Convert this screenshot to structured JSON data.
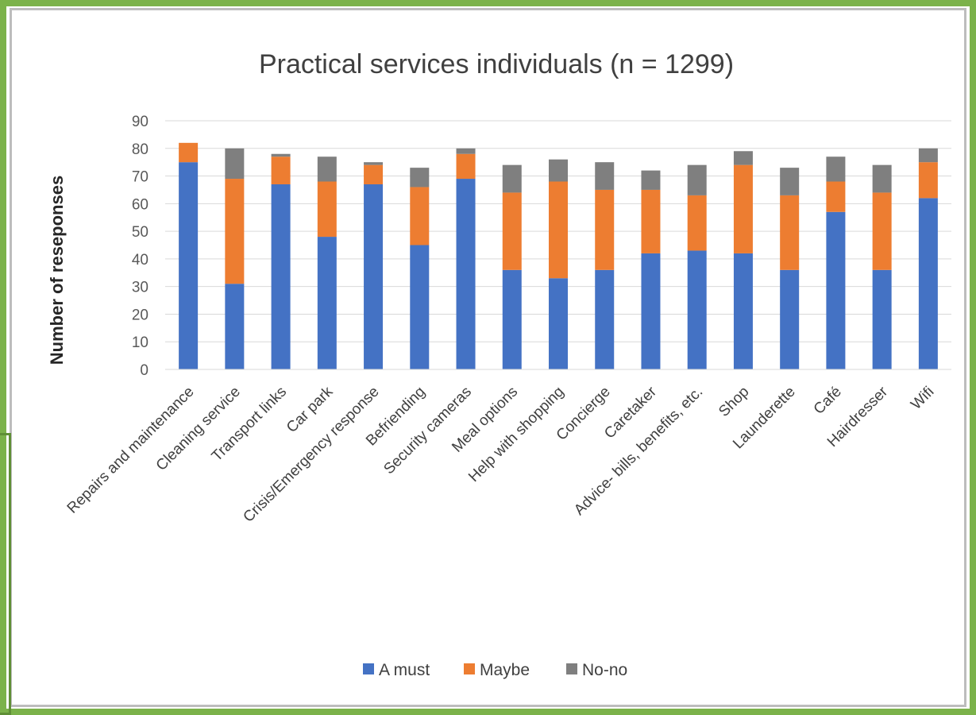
{
  "chart_data": {
    "type": "bar",
    "stacked": true,
    "title": "Practical services individuals (n = 1299)",
    "ylabel": "Number of reseponses",
    "xlabel": "",
    "ylim": [
      0,
      90
    ],
    "yticks": [
      0,
      10,
      20,
      30,
      40,
      50,
      60,
      70,
      80,
      90
    ],
    "grid": true,
    "legend_position": "bottom",
    "categories": [
      "Repairs and maintenance",
      "Cleaning service",
      "Transport links",
      "Car park",
      "Crisis/Emergency response",
      "Befriending",
      "Security cameras",
      "Meal options",
      "Help with shopping",
      "Concierge",
      "Caretaker",
      "Advice- bills, benefits, etc.",
      "Shop",
      "Launderette",
      "Café",
      "Hairdresser",
      "Wifi"
    ],
    "series": [
      {
        "name": "A must",
        "color": "#4472c4",
        "values": [
          75,
          31,
          67,
          48,
          67,
          45,
          69,
          36,
          33,
          36,
          42,
          43,
          42,
          36,
          57,
          36,
          62
        ]
      },
      {
        "name": "Maybe",
        "color": "#ed7d31",
        "values": [
          7,
          38,
          10,
          20,
          7,
          21,
          9,
          28,
          35,
          29,
          23,
          20,
          32,
          27,
          11,
          28,
          13
        ]
      },
      {
        "name": "No-no",
        "color": "#7f7f7f",
        "values": [
          0,
          11,
          1,
          9,
          1,
          7,
          2,
          10,
          8,
          10,
          7,
          11,
          5,
          10,
          9,
          10,
          5
        ]
      }
    ]
  }
}
